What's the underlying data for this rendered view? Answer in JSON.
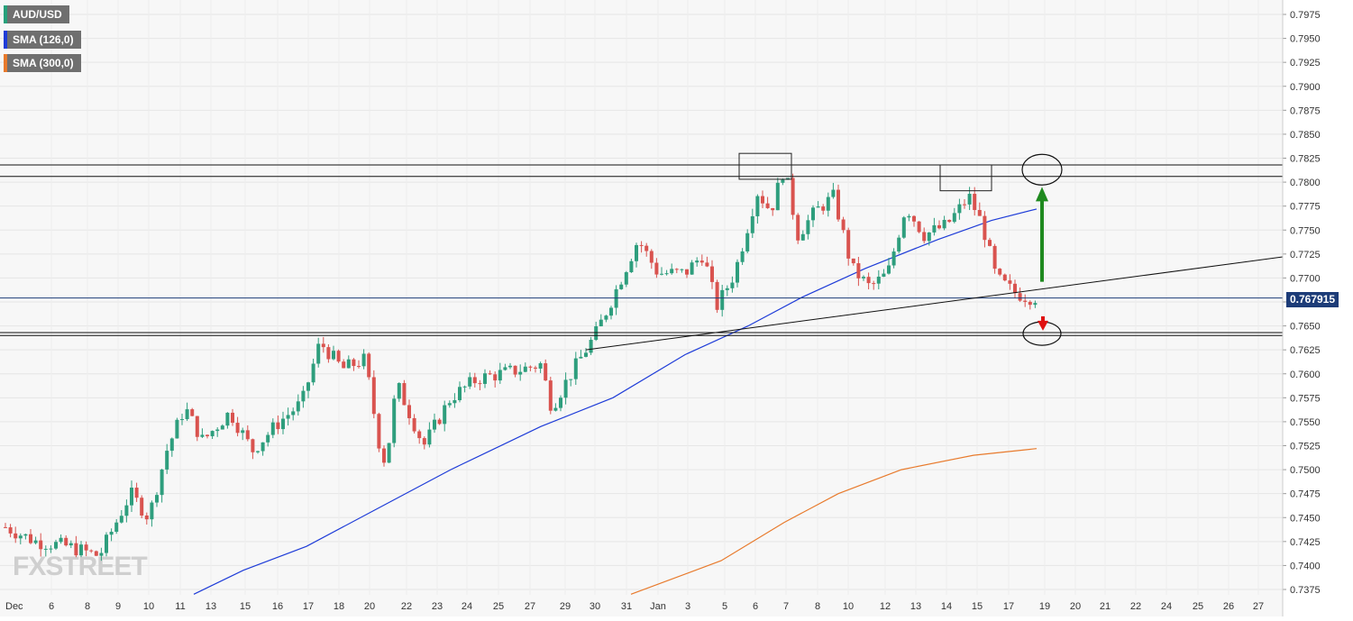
{
  "legend": {
    "items": [
      {
        "label": "AUD/USD",
        "color": "#26a17b"
      },
      {
        "label": "SMA (126,0)",
        "color": "#1e3cd8"
      },
      {
        "label": "SMA (300,0)",
        "color": "#e87a2c"
      }
    ]
  },
  "current_price": "0.767915",
  "watermark": "FXSTREET",
  "colors": {
    "up": "#2e9e7d",
    "down": "#d9534f",
    "sma126": "#1e3cd8",
    "sma300": "#e87a2c",
    "price_line": "#1d3c78",
    "arrow_up": "#1f8a1f",
    "arrow_down": "#e01010",
    "grid": "#e6e6e6",
    "background": "#f7f7f7"
  },
  "chart_data": {
    "type": "candlestick",
    "symbol": "AUD/USD",
    "ylim": [
      0.737,
      0.7995
    ],
    "y_ticks": [
      "0.7975",
      "0.7950",
      "0.7925",
      "0.7900",
      "0.7875",
      "0.7850",
      "0.7825",
      "0.7800",
      "0.7775",
      "0.7750",
      "0.7725",
      "0.7700",
      "0.7675",
      "0.7650",
      "0.7625",
      "0.7600",
      "0.7575",
      "0.7550",
      "0.7525",
      "0.7500",
      "0.7475",
      "0.7450",
      "0.7425",
      "0.7400",
      "0.7375"
    ],
    "x_labels": [
      "Dec",
      "6",
      "8",
      "9",
      "10",
      "11",
      "13",
      "15",
      "16",
      "17",
      "18",
      "20",
      "22",
      "23",
      "24",
      "25",
      "27",
      "29",
      "30",
      "31",
      "Jan",
      "3",
      "5",
      "6",
      "7",
      "8",
      "10",
      "12",
      "13",
      "14",
      "15",
      "17",
      "19",
      "20",
      "21",
      "22",
      "24",
      "25",
      "26",
      "27"
    ],
    "grid": true,
    "candle_anchors": [
      {
        "x": 6,
        "close": 0.744
      },
      {
        "x": 40,
        "close": 0.7425
      },
      {
        "x": 75,
        "close": 0.742
      },
      {
        "x": 110,
        "close": 0.741
      },
      {
        "x": 145,
        "close": 0.7475
      },
      {
        "x": 165,
        "close": 0.745
      },
      {
        "x": 185,
        "close": 0.752
      },
      {
        "x": 205,
        "close": 0.7565
      },
      {
        "x": 225,
        "close": 0.753
      },
      {
        "x": 255,
        "close": 0.756
      },
      {
        "x": 280,
        "close": 0.752
      },
      {
        "x": 310,
        "close": 0.755
      },
      {
        "x": 335,
        "close": 0.757
      },
      {
        "x": 355,
        "close": 0.7633
      },
      {
        "x": 380,
        "close": 0.7605
      },
      {
        "x": 405,
        "close": 0.7615
      },
      {
        "x": 420,
        "close": 0.753
      },
      {
        "x": 428,
        "close": 0.7505
      },
      {
        "x": 440,
        "close": 0.759
      },
      {
        "x": 470,
        "close": 0.7525
      },
      {
        "x": 500,
        "close": 0.7575
      },
      {
        "x": 530,
        "close": 0.7595
      },
      {
        "x": 555,
        "close": 0.76
      },
      {
        "x": 580,
        "close": 0.7605
      },
      {
        "x": 600,
        "close": 0.761
      },
      {
        "x": 612,
        "close": 0.7565
      },
      {
        "x": 630,
        "close": 0.7595
      },
      {
        "x": 660,
        "close": 0.764
      },
      {
        "x": 680,
        "close": 0.768
      },
      {
        "x": 708,
        "close": 0.774
      },
      {
        "x": 730,
        "close": 0.7705
      },
      {
        "x": 760,
        "close": 0.7705
      },
      {
        "x": 780,
        "close": 0.7725
      },
      {
        "x": 795,
        "close": 0.767
      },
      {
        "x": 815,
        "close": 0.7705
      },
      {
        "x": 840,
        "close": 0.779
      },
      {
        "x": 855,
        "close": 0.777
      },
      {
        "x": 870,
        "close": 0.7815
      },
      {
        "x": 885,
        "close": 0.7745
      },
      {
        "x": 905,
        "close": 0.777
      },
      {
        "x": 925,
        "close": 0.7785
      },
      {
        "x": 945,
        "close": 0.771
      },
      {
        "x": 965,
        "close": 0.769
      },
      {
        "x": 985,
        "close": 0.7705
      },
      {
        "x": 1005,
        "close": 0.7775
      },
      {
        "x": 1025,
        "close": 0.7745
      },
      {
        "x": 1050,
        "close": 0.7755
      },
      {
        "x": 1075,
        "close": 0.7785
      },
      {
        "x": 1090,
        "close": 0.7755
      },
      {
        "x": 1105,
        "close": 0.77
      },
      {
        "x": 1125,
        "close": 0.7685
      },
      {
        "x": 1140,
        "close": 0.768
      },
      {
        "x": 1150,
        "close": 0.768
      }
    ],
    "sma_126": [
      {
        "x": 215,
        "y": 0.737
      },
      {
        "x": 270,
        "y": 0.7395
      },
      {
        "x": 340,
        "y": 0.742
      },
      {
        "x": 420,
        "y": 0.746
      },
      {
        "x": 500,
        "y": 0.75
      },
      {
        "x": 600,
        "y": 0.7545
      },
      {
        "x": 680,
        "y": 0.7575
      },
      {
        "x": 760,
        "y": 0.762
      },
      {
        "x": 830,
        "y": 0.765
      },
      {
        "x": 890,
        "y": 0.768
      },
      {
        "x": 960,
        "y": 0.771
      },
      {
        "x": 1040,
        "y": 0.774
      },
      {
        "x": 1100,
        "y": 0.776
      },
      {
        "x": 1150,
        "y": 0.7772
      }
    ],
    "sma_300": [
      {
        "x": 700,
        "y": 0.737
      },
      {
        "x": 800,
        "y": 0.7405
      },
      {
        "x": 870,
        "y": 0.7445
      },
      {
        "x": 930,
        "y": 0.7475
      },
      {
        "x": 1000,
        "y": 0.75
      },
      {
        "x": 1080,
        "y": 0.7515
      },
      {
        "x": 1150,
        "y": 0.7522
      }
    ],
    "resistance_lines": [
      0.7818,
      0.7806
    ],
    "support_lines": [
      0.7643,
      0.764
    ],
    "trendline": {
      "x1": 650,
      "y1": 0.7625,
      "x2": 1423,
      "y2": 0.7722
    },
    "boxes": [
      {
        "x1": 820,
        "x2": 878,
        "y_top": 0.783,
        "y_bottom": 0.7803
      },
      {
        "x1": 1043,
        "x2": 1100,
        "y_top": 0.7818,
        "y_bottom": 0.7791
      }
    ],
    "ellipses": [
      {
        "cx": 1156,
        "cy": 0.7813,
        "rx": 22,
        "ry": 17
      },
      {
        "cx": 1156,
        "cy": 0.7642,
        "rx": 21,
        "ry": 13
      }
    ],
    "arrows": [
      {
        "dir": "up",
        "x": 1156,
        "from": 0.7696,
        "to": 0.7795
      },
      {
        "dir": "down",
        "x": 1157,
        "from": 0.766,
        "to": 0.7645
      }
    ]
  }
}
